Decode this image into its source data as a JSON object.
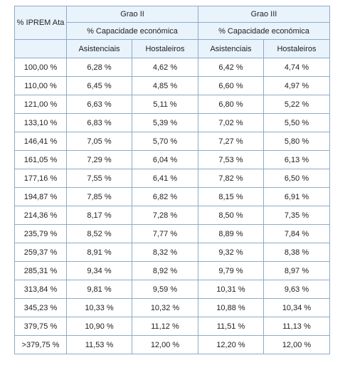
{
  "header": {
    "col_main": "% IPREM Ata",
    "group1": "Grao II",
    "group2": "Grao III",
    "sub1": "% Capacidade económica",
    "sub2": "% Capacidade económica",
    "col_asist1": "Asistenciais",
    "col_host1": "Hostaleiros",
    "col_asist2": "Asistenciais",
    "col_host2": "Hostaleiros"
  },
  "rows": [
    {
      "iprem": "100,00 %",
      "g2a": "6,28 %",
      "g2h": "4,62 %",
      "g3a": "6,42 %",
      "g3h": "4,74 %"
    },
    {
      "iprem": "110,00 %",
      "g2a": "6,45 %",
      "g2h": "4,85 %",
      "g3a": "6,60 %",
      "g3h": "4,97 %"
    },
    {
      "iprem": "121,00 %",
      "g2a": "6,63 %",
      "g2h": "5,11 %",
      "g3a": "6,80 %",
      "g3h": "5,22 %"
    },
    {
      "iprem": "133,10 %",
      "g2a": "6,83 %",
      "g2h": "5,39 %",
      "g3a": "7,02 %",
      "g3h": "5,50 %"
    },
    {
      "iprem": "146,41 %",
      "g2a": "7,05 %",
      "g2h": "5,70 %",
      "g3a": "7,27 %",
      "g3h": "5,80 %"
    },
    {
      "iprem": "161,05 %",
      "g2a": "7,29 %",
      "g2h": "6,04 %",
      "g3a": "7,53 %",
      "g3h": "6,13 %"
    },
    {
      "iprem": "177,16 %",
      "g2a": "7,55 %",
      "g2h": "6,41 %",
      "g3a": "7,82 %",
      "g3h": "6,50 %"
    },
    {
      "iprem": "194,87 %",
      "g2a": "7,85 %",
      "g2h": "6,82 %",
      "g3a": "8,15 %",
      "g3h": "6,91 %"
    },
    {
      "iprem": "214,36 %",
      "g2a": "8,17 %",
      "g2h": "7,28 %",
      "g3a": "8,50 %",
      "g3h": "7,35 %"
    },
    {
      "iprem": "235,79 %",
      "g2a": "8,52 %",
      "g2h": "7,77 %",
      "g3a": "8,89 %",
      "g3h": "7,84 %"
    },
    {
      "iprem": "259,37 %",
      "g2a": "8,91 %",
      "g2h": "8,32 %",
      "g3a": "9,32 %",
      "g3h": "8,38 %"
    },
    {
      "iprem": "285,31 %",
      "g2a": "9,34 %",
      "g2h": "8,92 %",
      "g3a": "9,79 %",
      "g3h": "8,97 %"
    },
    {
      "iprem": "313,84 %",
      "g2a": "9,81 %",
      "g2h": "9,59 %",
      "g3a": "10,31 %",
      "g3h": "9,63 %"
    },
    {
      "iprem": "345,23 %",
      "g2a": "10,33 %",
      "g2h": "10,32 %",
      "g3a": "10,88 %",
      "g3h": "10,34 %"
    },
    {
      "iprem": "379,75 %",
      "g2a": "10,90 %",
      "g2h": "11,12 %",
      "g3a": "11,51 %",
      "g3h": "11,13 %"
    },
    {
      "iprem": ">379,75 %",
      "g2a": "11,53 %",
      "g2h": "12,00 %",
      "g3a": "12,20 %",
      "g3h": "12,00 %"
    }
  ]
}
